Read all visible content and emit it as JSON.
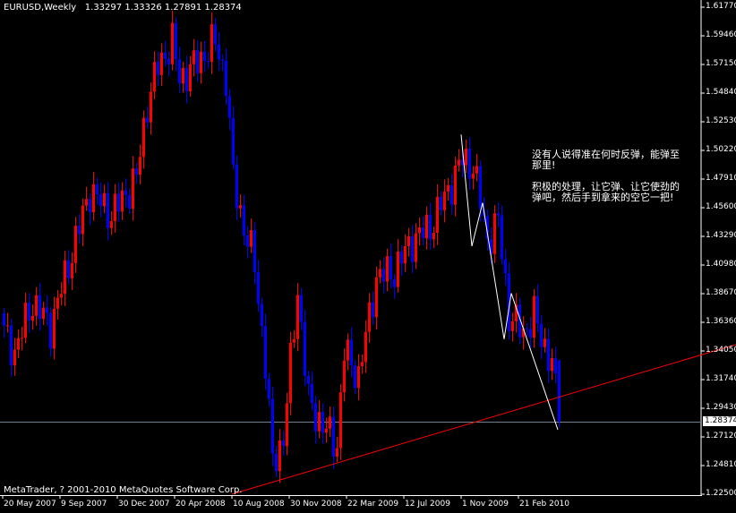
{
  "title": {
    "symbol": "EURUSD,Weekly",
    "open": "1.33297",
    "high": "1.33326",
    "low": "1.27891",
    "close": "1.28374"
  },
  "copyright": "MetaTrader, ? 2001-2010 MetaQuotes Software Corp.",
  "annotation": {
    "line1": "没有人说得准在何时反弹，能弹至那里!",
    "line2": "积极的处理，让它弹、让它使劲的弹吧，然后手到拿来的空它一把!"
  },
  "current_price_label": "1.28374",
  "colors": {
    "bull": "#ff0000",
    "bear": "#0000ff",
    "trendline": "#ff0000",
    "zigzag": "#ffffff",
    "grid": "#ffffff",
    "price_line": "#708090"
  },
  "chart_data": {
    "type": "candlestick",
    "price_axis": [
      "1.61770",
      "1.59460",
      "1.57150",
      "1.54840",
      "1.52530",
      "1.50220",
      "1.47910",
      "1.45600",
      "1.43290",
      "1.40980",
      "1.38670",
      "1.36360",
      "1.34050",
      "1.31740",
      "1.29430",
      "1.27120",
      "1.24810",
      "1.22500"
    ],
    "ylim": [
      1.225,
      1.6177
    ],
    "date_axis": [
      "20 May 2007",
      "9 Sep 2007",
      "30 Dec 2007",
      "20 Apr 2008",
      "10 Aug 2008",
      "30 Nov 2008",
      "22 Mar 2009",
      "12 Jul 2009",
      "1 Nov 2009",
      "21 Feb 2010"
    ],
    "start_week": "2007-05-20",
    "approx_weekly_close": [
      [
        "2007-05-20",
        1.355
      ],
      [
        "2007-06-10",
        1.34
      ],
      [
        "2007-07-15",
        1.38
      ],
      [
        "2007-08-19",
        1.36
      ],
      [
        "2007-09-23",
        1.41
      ],
      [
        "2007-11-04",
        1.47
      ],
      [
        "2007-12-16",
        1.45
      ],
      [
        "2008-02-03",
        1.48
      ],
      [
        "2008-02-24",
        1.54
      ],
      [
        "2008-03-16",
        1.57
      ],
      [
        "2008-04-13",
        1.59
      ],
      [
        "2008-04-27",
        1.56
      ],
      [
        "2008-05-25",
        1.57
      ],
      [
        "2008-07-06",
        1.59
      ],
      [
        "2008-07-27",
        1.56
      ],
      [
        "2008-08-10",
        1.48
      ],
      [
        "2008-08-31",
        1.44
      ],
      [
        "2008-09-21",
        1.41
      ],
      [
        "2008-10-12",
        1.33
      ],
      [
        "2008-10-26",
        1.25
      ],
      [
        "2008-11-16",
        1.27
      ],
      [
        "2008-12-14",
        1.39
      ],
      [
        "2009-01-04",
        1.3
      ],
      [
        "2009-02-01",
        1.28
      ],
      [
        "2009-03-01",
        1.265
      ],
      [
        "2009-03-15",
        1.34
      ],
      [
        "2009-04-12",
        1.32
      ],
      [
        "2009-05-17",
        1.4
      ],
      [
        "2009-06-21",
        1.405
      ],
      [
        "2009-07-26",
        1.43
      ],
      [
        "2009-08-30",
        1.44
      ],
      [
        "2009-10-04",
        1.47
      ],
      [
        "2009-11-01",
        1.495
      ],
      [
        "2009-11-22",
        1.49
      ],
      [
        "2009-12-20",
        1.43
      ],
      [
        "2010-01-10",
        1.445
      ],
      [
        "2010-01-31",
        1.37
      ],
      [
        "2010-02-28",
        1.355
      ],
      [
        "2010-03-21",
        1.37
      ],
      [
        "2010-04-04",
        1.35
      ],
      [
        "2010-04-25",
        1.332
      ],
      [
        "2010-05-09",
        1.28374
      ]
    ],
    "last_candle": {
      "open": 1.33297,
      "high": 1.33326,
      "low": 1.27891,
      "close": 1.28374
    },
    "trendline": [
      [
        "2008-08-10",
        1.225
      ],
      [
        "2010-05-09",
        1.303
      ]
    ],
    "zigzag": [
      [
        "2009-11-01",
        1.515
      ],
      [
        "2009-11-22",
        1.425
      ],
      [
        "2009-12-13",
        1.46
      ],
      [
        "2010-01-24",
        1.35
      ],
      [
        "2010-02-07",
        1.387
      ],
      [
        "2010-05-09",
        1.277
      ]
    ]
  }
}
